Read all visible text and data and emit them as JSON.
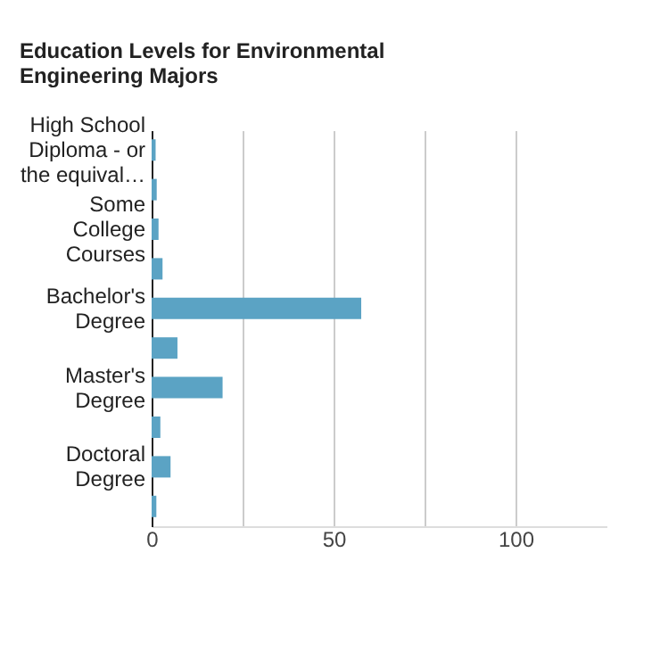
{
  "chart_data": {
    "type": "bar",
    "orientation": "horizontal",
    "title": "Education Levels for Environmental\nEngineering Majors",
    "categories": [
      "High School\nDiploma - or\nthe equival…",
      null,
      "Some\nCollege\nCourses",
      null,
      "Bachelor's\nDegree",
      null,
      "Master's\nDegree",
      null,
      "Doctoral\nDegree",
      null
    ],
    "values": [
      1.1,
      1.4,
      1.9,
      3,
      57.6,
      7.1,
      19.5,
      2.4,
      5.2,
      1.3
    ],
    "color": "#5ba3c4",
    "xlim": [
      0,
      125
    ],
    "xticks": [
      0,
      {
        "value": 25,
        "label": null
      },
      50,
      {
        "value": 75,
        "label": null
      },
      100
    ],
    "grid": true
  }
}
